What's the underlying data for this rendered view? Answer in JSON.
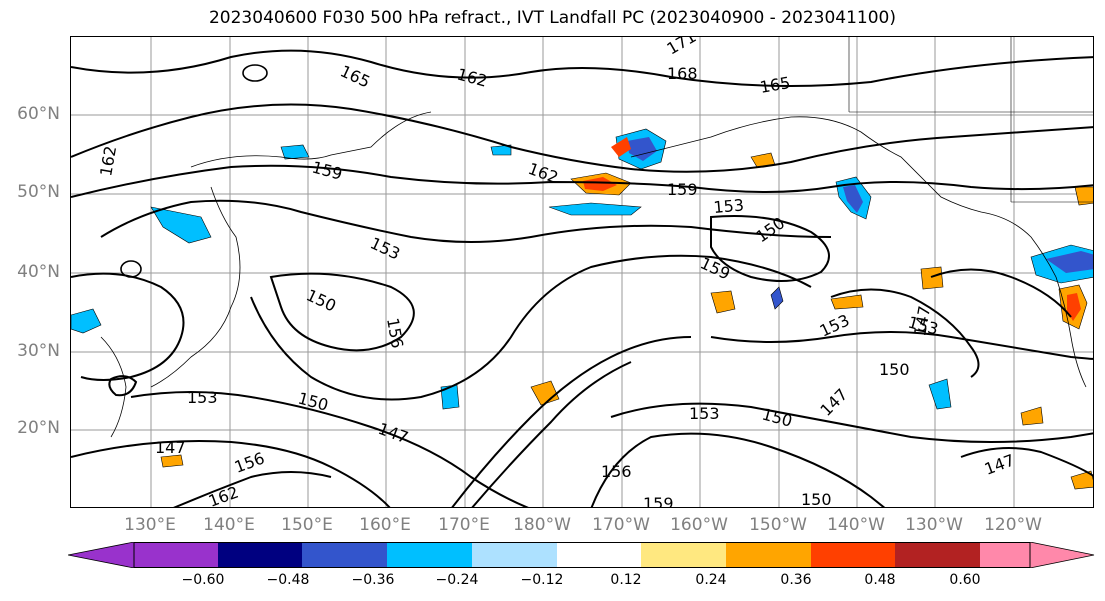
{
  "title": "2023040600 F030 500 hPa refract., IVT Landfall PC (2023040900 - 2023041100)",
  "latitude_labels": [
    "60°N",
    "50°N",
    "40°N",
    "30°N",
    "20°N"
  ],
  "longitude_labels": [
    "130°E",
    "140°E",
    "150°E",
    "160°E",
    "170°E",
    "180°W",
    "170°W",
    "160°W",
    "150°W",
    "140°W",
    "130°W",
    "120°W"
  ],
  "contour_labels": [
    "165",
    "162",
    "171",
    "168",
    "165",
    "162",
    "159",
    "162",
    "159",
    "153",
    "150",
    "153",
    "159",
    "150",
    "156",
    "153",
    "153",
    "150",
    "147",
    "153",
    "150",
    "153",
    "147",
    "156",
    "159",
    "150",
    "147",
    "150",
    "147",
    "156",
    "162",
    "147"
  ],
  "colorbar": {
    "tick_labels": [
      "−0.60",
      "−0.48",
      "−0.36",
      "−0.24",
      "−0.12",
      "0.12",
      "0.24",
      "0.36",
      "0.48",
      "0.60"
    ],
    "colors": [
      "#9932CC",
      "#000080",
      "#3355CC",
      "#00BFFF",
      "#ADE1FF",
      "#FFFFFF",
      "#FFE880",
      "#FFA500",
      "#FF4000",
      "#B22222",
      "#FF88AA"
    ]
  }
}
